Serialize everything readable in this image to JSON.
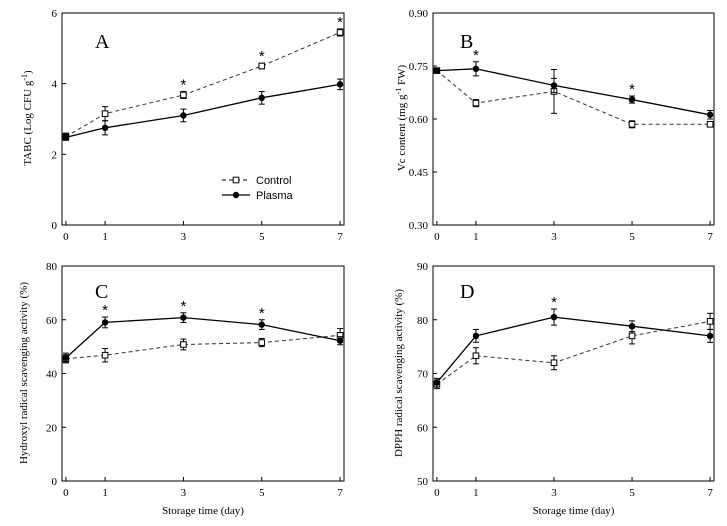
{
  "chart_data": [
    {
      "type": "line",
      "panel_label": "A",
      "xlabel": "",
      "ylabel": "TABC (Log CFU g",
      "ylabel_sup": "-1",
      "ylabel_end": ")",
      "x": [
        0,
        1,
        3,
        5,
        7
      ],
      "xticks": [
        0,
        1,
        3,
        5,
        7
      ],
      "xlim": [
        -0.1,
        7.1
      ],
      "ylim": [
        0,
        6
      ],
      "yticks": [
        0,
        2,
        4,
        6
      ],
      "ytick_labels": [
        "0",
        "2",
        "4",
        "6"
      ],
      "legend": {
        "position": "lower-right",
        "entries": [
          "Control",
          "Plasma"
        ]
      },
      "series": [
        {
          "name": "Control",
          "style": "dashed-open-square",
          "values": [
            2.5,
            3.15,
            3.68,
            4.5,
            5.45
          ],
          "errors": [
            0.1,
            0.2,
            0.1,
            0.08,
            0.1
          ]
        },
        {
          "name": "Plasma",
          "style": "solid-filled-circle",
          "values": [
            2.48,
            2.75,
            3.1,
            3.6,
            3.98
          ],
          "errors": [
            0.08,
            0.2,
            0.18,
            0.18,
            0.15
          ]
        }
      ],
      "significance_x": [
        3,
        5,
        7
      ],
      "significance_marker": "*"
    },
    {
      "type": "line",
      "panel_label": "B",
      "xlabel": "",
      "ylabel": "Vc content (mg g",
      "ylabel_sup": "-1",
      "ylabel_end": " FW)",
      "x": [
        0,
        1,
        3,
        5,
        7
      ],
      "xticks": [
        0,
        1,
        3,
        5,
        7
      ],
      "xlim": [
        -0.1,
        7.1
      ],
      "ylim": [
        0.3,
        0.9
      ],
      "yticks": [
        0.3,
        0.45,
        0.6,
        0.75,
        0.9
      ],
      "ytick_labels": [
        "0.30",
        "0.45",
        "0.60",
        "0.75",
        "0.90"
      ],
      "series": [
        {
          "name": "Control",
          "style": "dashed-open-square",
          "values": [
            0.737,
            0.645,
            0.678,
            0.585,
            0.585
          ],
          "errors": [
            0.005,
            0.01,
            0.062,
            0.01,
            0.006
          ]
        },
        {
          "name": "Plasma",
          "style": "solid-filled-circle",
          "values": [
            0.737,
            0.742,
            0.695,
            0.655,
            0.612
          ],
          "errors": [
            0.005,
            0.02,
            0.02,
            0.01,
            0.012
          ]
        }
      ],
      "significance_x": [
        1,
        5
      ],
      "significance_marker": "*"
    },
    {
      "type": "line",
      "panel_label": "C",
      "xlabel": "Storage time (day)",
      "ylabel": "Hydroxyl radical scavenging activity (%)",
      "x": [
        0,
        1,
        3,
        5,
        7
      ],
      "xticks": [
        0,
        1,
        3,
        5,
        7
      ],
      "xlim": [
        -0.1,
        7.1
      ],
      "ylim": [
        0,
        80
      ],
      "yticks": [
        0,
        20,
        40,
        60,
        80
      ],
      "ytick_labels": [
        "0",
        "20",
        "40",
        "60",
        "80"
      ],
      "series": [
        {
          "name": "Control",
          "style": "dashed-open-square",
          "values": [
            45.5,
            46.8,
            50.8,
            51.5,
            54.2
          ],
          "errors": [
            1.5,
            2.5,
            2.0,
            1.5,
            2.5
          ]
        },
        {
          "name": "Plasma",
          "style": "solid-filled-circle",
          "values": [
            45.8,
            59.0,
            60.8,
            58.2,
            52.2
          ],
          "errors": [
            1.8,
            2.0,
            1.8,
            1.8,
            1.5
          ]
        }
      ],
      "significance_x": [
        1,
        3,
        5
      ],
      "significance_marker": "*"
    },
    {
      "type": "line",
      "panel_label": "D",
      "xlabel": "Storage time (day)",
      "ylabel": "DPPH radical scavenging activity (%)",
      "x": [
        0,
        1,
        3,
        5,
        7
      ],
      "xticks": [
        0,
        1,
        3,
        5,
        7
      ],
      "xlim": [
        -0.1,
        7.1
      ],
      "ylim": [
        50,
        90
      ],
      "yticks": [
        50,
        60,
        70,
        80,
        90
      ],
      "ytick_labels": [
        "50",
        "60",
        "70",
        "80",
        "90"
      ],
      "series": [
        {
          "name": "Control",
          "style": "dashed-open-square",
          "values": [
            68.0,
            73.3,
            72.0,
            77.0,
            79.7
          ],
          "errors": [
            0.8,
            1.5,
            1.3,
            1.5,
            1.5
          ]
        },
        {
          "name": "Plasma",
          "style": "solid-filled-circle",
          "values": [
            68.3,
            77.0,
            80.5,
            78.8,
            77.0
          ],
          "errors": [
            0.8,
            1.2,
            1.5,
            1.0,
            1.2
          ]
        }
      ],
      "significance_x": [
        3
      ],
      "significance_marker": "*"
    }
  ]
}
